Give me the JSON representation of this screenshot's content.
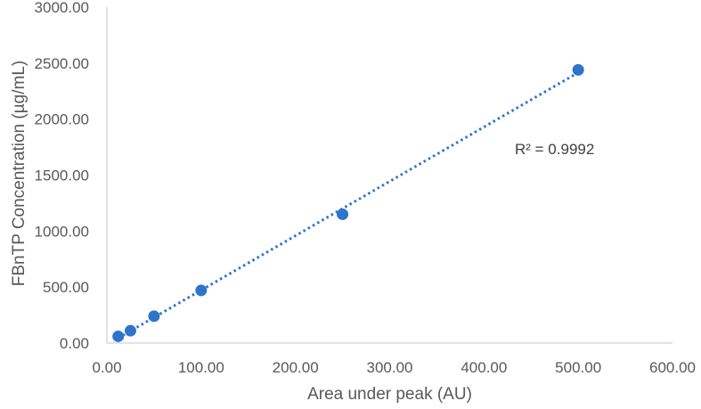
{
  "chart_data": {
    "type": "scatter",
    "title": "",
    "xlabel": "Area under peak (AU)",
    "ylabel": "FBnTP Concentration (µg/mL)",
    "xlim": [
      0,
      600
    ],
    "ylim": [
      0,
      3000
    ],
    "x_ticks": [
      "0.00",
      "100.00",
      "200.00",
      "300.00",
      "400.00",
      "500.00",
      "600.00"
    ],
    "y_ticks": [
      "0.00",
      "500.00",
      "1000.00",
      "1500.00",
      "2000.00",
      "2500.00",
      "3000.00"
    ],
    "grid": false,
    "series": [
      {
        "points": [
          {
            "x": 12,
            "y": 60
          },
          {
            "x": 25,
            "y": 110
          },
          {
            "x": 50,
            "y": 240
          },
          {
            "x": 100,
            "y": 470
          },
          {
            "x": 250,
            "y": 1150
          },
          {
            "x": 500,
            "y": 2440
          }
        ]
      }
    ],
    "trendline": {
      "style": "dotted linear",
      "x_from": 12,
      "x_to": 500
    },
    "annotation": "R² = 0.9992",
    "colors": {
      "marker": "#2e75c9",
      "trendline": "#2e75c9",
      "axis": "#d9d9d9"
    }
  }
}
